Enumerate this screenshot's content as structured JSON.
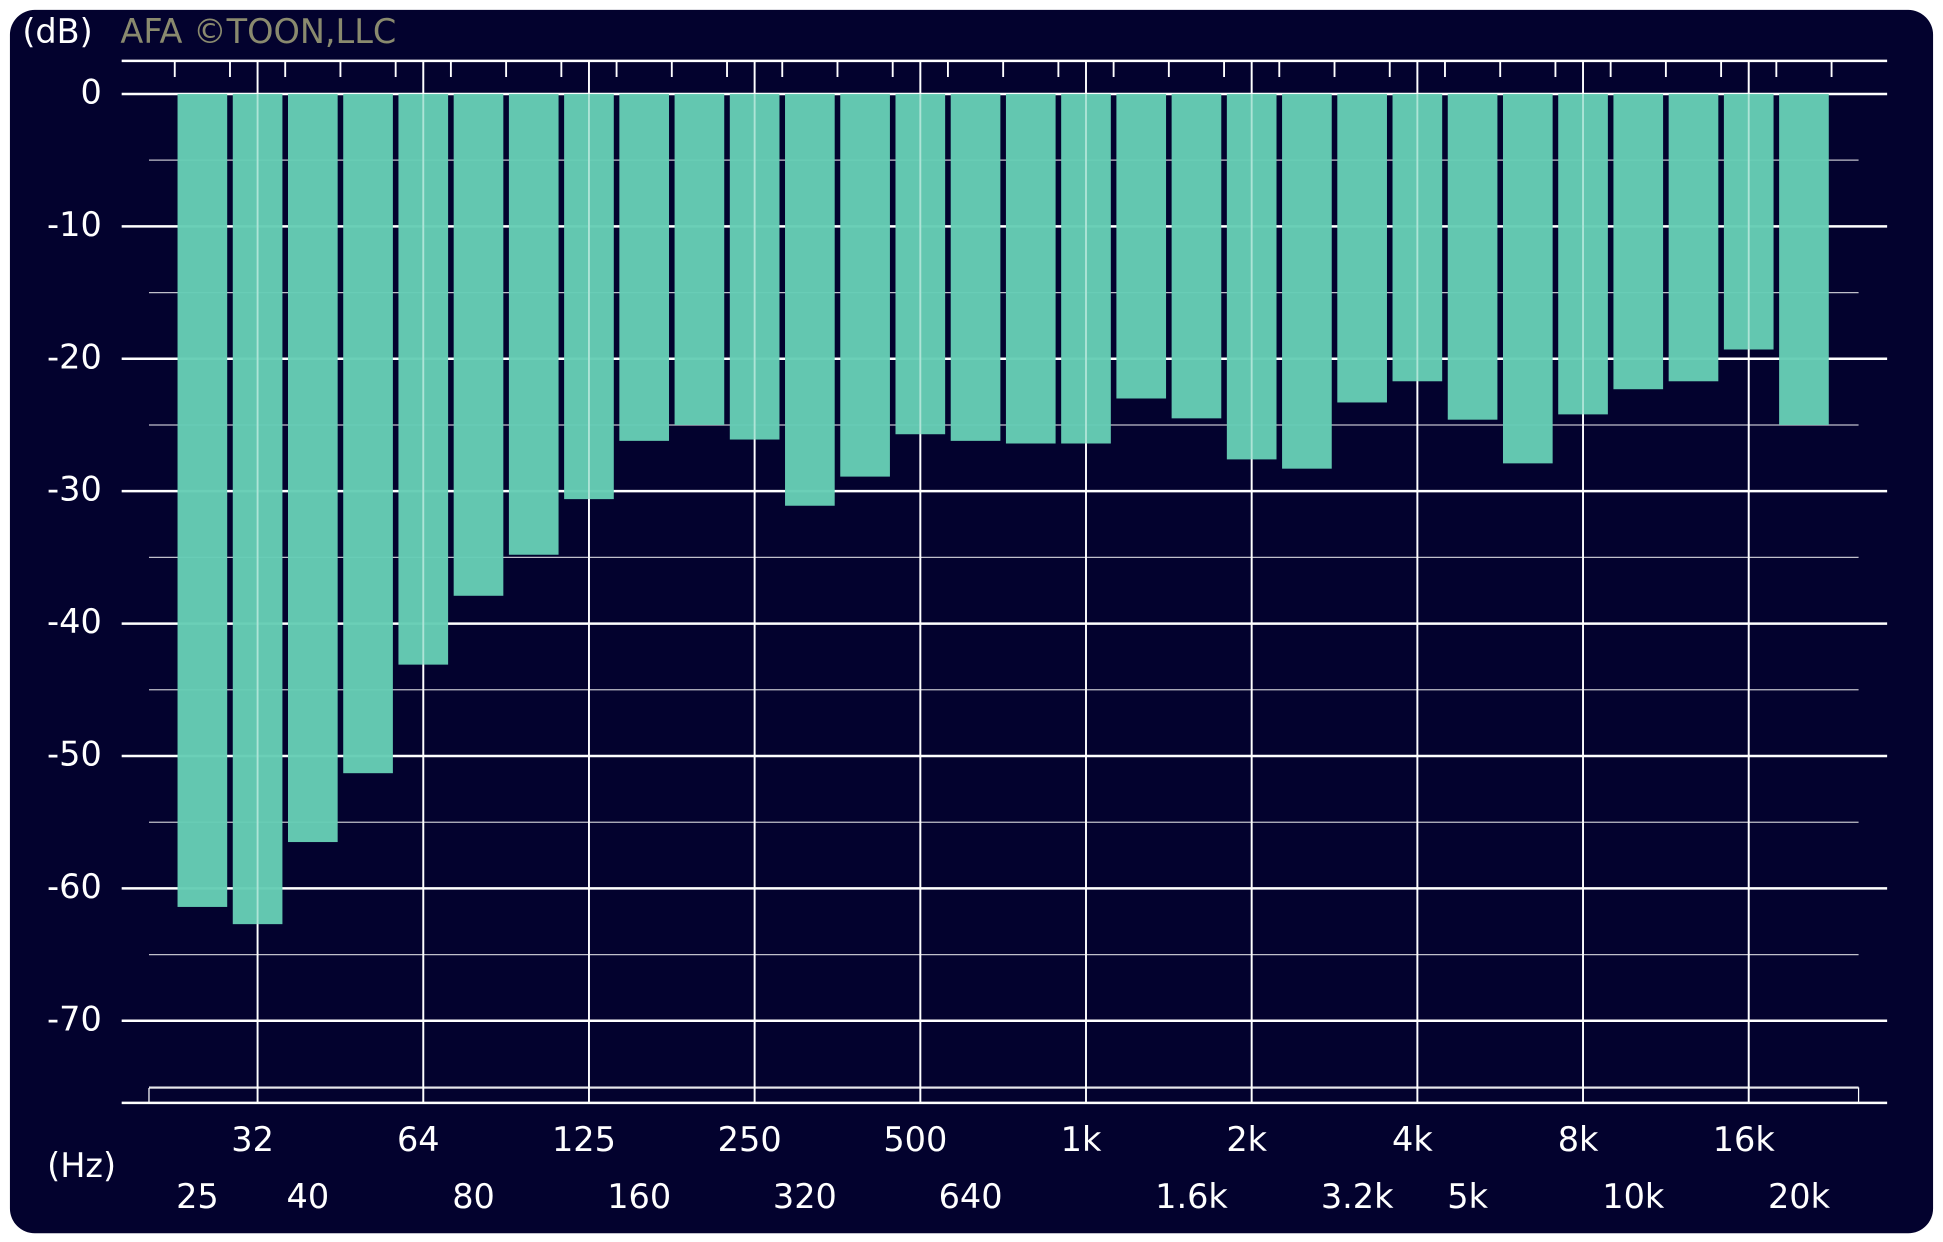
{
  "chart_data": {
    "type": "bar",
    "y_unit_label": "(dB)",
    "watermark": "AFA ©TOON,LLC",
    "x_unit_label": "(Hz)",
    "categories": [
      "25",
      "32",
      "40",
      null,
      "64",
      "80",
      null,
      "125",
      "160",
      null,
      "250",
      "320",
      null,
      "500",
      "640",
      null,
      "1k",
      null,
      "1.6k",
      "2k",
      null,
      "3.2k",
      "4k",
      "5k",
      null,
      "8k",
      "10k",
      null,
      "16k",
      "20k"
    ],
    "values": [
      -61.4,
      -62.7,
      -56.5,
      -51.3,
      -43.1,
      -37.9,
      -34.8,
      -30.6,
      -26.2,
      -25.0,
      -26.1,
      -31.1,
      -28.9,
      -25.7,
      -26.2,
      -26.4,
      -26.4,
      -23.0,
      -24.5,
      -27.6,
      -28.3,
      -23.3,
      -21.7,
      -24.6,
      -27.9,
      -24.2,
      -22.3,
      -21.7,
      -19.3,
      -25.0
    ],
    "color": "#66cdb5",
    "ylim": [
      -76.2,
      2.5
    ],
    "yticks": [
      0,
      -10,
      -20,
      -30,
      -40,
      -50,
      -60,
      -70
    ],
    "minor_yticks": [
      -5,
      -15,
      -25,
      -35,
      -45,
      -55,
      -65,
      -75
    ],
    "grid": true
  }
}
